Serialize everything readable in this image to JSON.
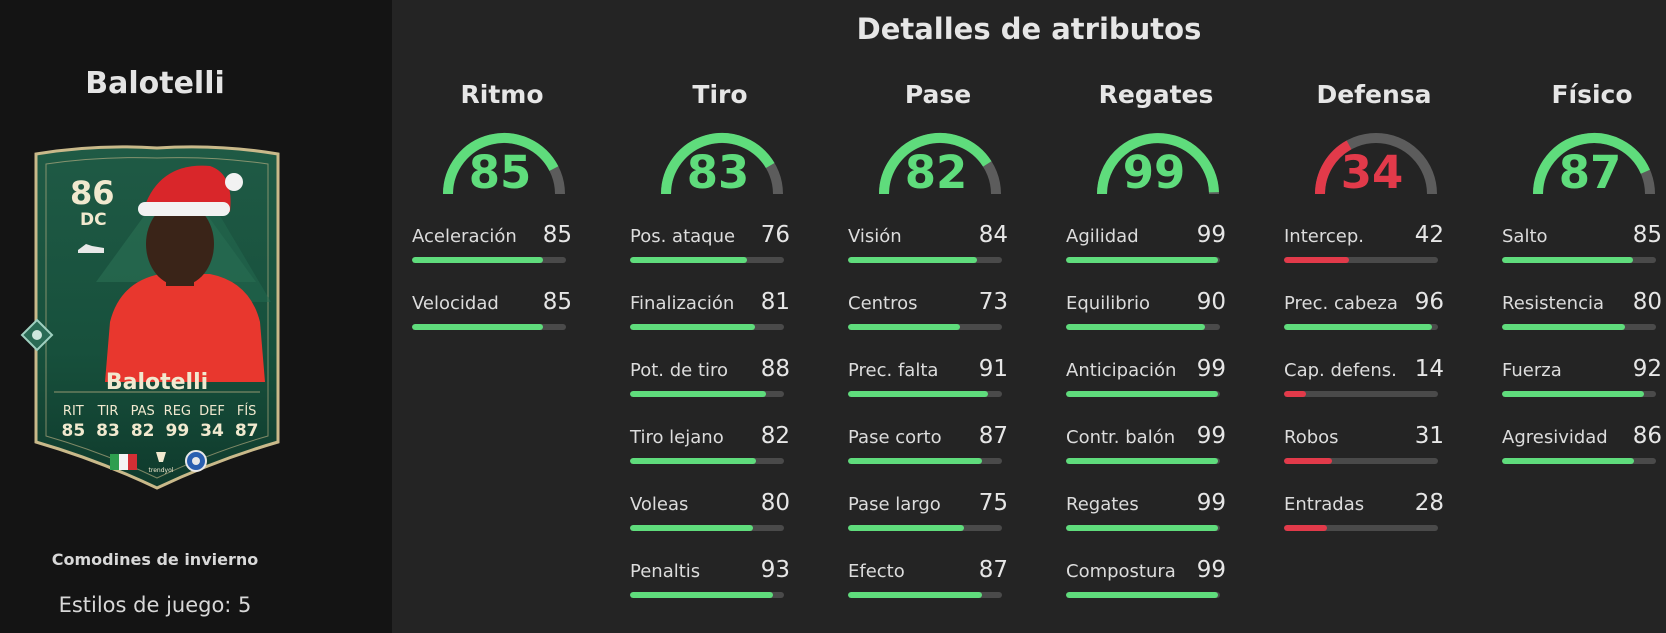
{
  "player": {
    "name": "Balotelli",
    "promo": "Comodines de invierno",
    "playstyles": "Estilos de juego: 5"
  },
  "card": {
    "rating": "86",
    "position": "DC",
    "name": "Balotelli",
    "stat_labels": [
      "RIT",
      "TIR",
      "PAS",
      "REG",
      "DEF",
      "FÍS"
    ],
    "stat_values": [
      "85",
      "83",
      "82",
      "99",
      "34",
      "87"
    ],
    "league_text": "trendyol",
    "icons": [
      "boot-icon",
      "club-crest-icon",
      "italy-flag-icon",
      "league-logo-icon",
      "club-badge-icon"
    ]
  },
  "panel": {
    "title": "Detalles de atributos"
  },
  "colors": {
    "green": "#5fdc7c",
    "red": "#e23a4a",
    "track": "#4a4a4a",
    "gauge_track": "#5c5c5c"
  },
  "categories": [
    {
      "title": "Ritmo",
      "value": 85,
      "color": "green",
      "attrs": [
        {
          "label": "Aceleración",
          "value": 85
        },
        {
          "label": "Velocidad",
          "value": 85
        }
      ]
    },
    {
      "title": "Tiro",
      "value": 83,
      "color": "green",
      "attrs": [
        {
          "label": "Pos. ataque",
          "value": 76
        },
        {
          "label": "Finalización",
          "value": 81
        },
        {
          "label": "Pot. de tiro",
          "value": 88
        },
        {
          "label": "Tiro lejano",
          "value": 82
        },
        {
          "label": "Voleas",
          "value": 80
        },
        {
          "label": "Penaltis",
          "value": 93
        }
      ]
    },
    {
      "title": "Pase",
      "value": 82,
      "color": "green",
      "attrs": [
        {
          "label": "Visión",
          "value": 84
        },
        {
          "label": "Centros",
          "value": 73
        },
        {
          "label": "Prec. falta",
          "value": 91
        },
        {
          "label": "Pase corto",
          "value": 87
        },
        {
          "label": "Pase largo",
          "value": 75
        },
        {
          "label": "Efecto",
          "value": 87
        }
      ]
    },
    {
      "title": "Regates",
      "value": 99,
      "color": "green",
      "attrs": [
        {
          "label": "Agilidad",
          "value": 99
        },
        {
          "label": "Equilibrio",
          "value": 90
        },
        {
          "label": "Anticipación",
          "value": 99
        },
        {
          "label": "Contr. balón",
          "value": 99
        },
        {
          "label": "Regates",
          "value": 99
        },
        {
          "label": "Compostura",
          "value": 99
        }
      ]
    },
    {
      "title": "Defensa",
      "value": 34,
      "color": "red",
      "attrs": [
        {
          "label": "Intercep.",
          "value": 42
        },
        {
          "label": "Prec. cabeza",
          "value": 96
        },
        {
          "label": "Cap. defens.",
          "value": 14
        },
        {
          "label": "Robos",
          "value": 31
        },
        {
          "label": "Entradas",
          "value": 28
        }
      ]
    },
    {
      "title": "Físico",
      "value": 87,
      "color": "green",
      "attrs": [
        {
          "label": "Salto",
          "value": 85
        },
        {
          "label": "Resistencia",
          "value": 80
        },
        {
          "label": "Fuerza",
          "value": 92
        },
        {
          "label": "Agresividad",
          "value": 86
        }
      ]
    }
  ]
}
